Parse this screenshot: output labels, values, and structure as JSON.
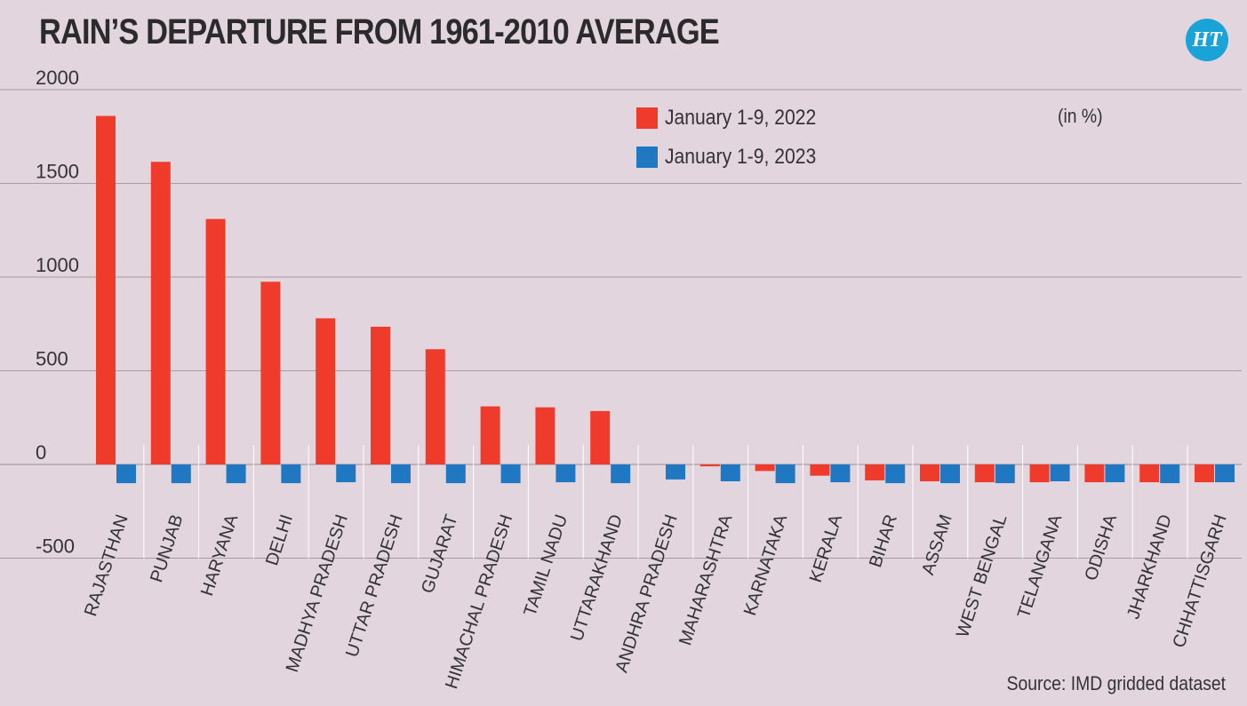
{
  "title": "RAIN’S DEPARTURE FROM 1961-2010 AVERAGE",
  "logo_text": "HT",
  "unit_note": "(in %)",
  "source": "Source: IMD gridded dataset",
  "colors": {
    "series_2022": "#ef3b2c",
    "series_2023": "#1f78c1",
    "background": "#e3d5de"
  },
  "chart_data": {
    "type": "bar",
    "title": "RAIN’S DEPARTURE FROM 1961-2010 AVERAGE",
    "xlabel": "",
    "ylabel": "",
    "ylim": [
      -500,
      2000
    ],
    "yticks": [
      2000,
      1500,
      1000,
      500,
      0,
      -500
    ],
    "grid": true,
    "legend_position": "top-center",
    "categories": [
      "RAJASTHAN",
      "PUNJAB",
      "HARYANA",
      "DELHI",
      "MADHYA PRADESH",
      "UTTAR PRADESH",
      "GUJARAT",
      "HIMACHAL PRADESH",
      "TAMIL NADU",
      "UTTARAKHAND",
      "ANDHRA PRADESH",
      "MAHARASHTRA",
      "KARNATAKA",
      "KERALA",
      "BIHAR",
      "ASSAM",
      "WEST BENGAL",
      "TELANGANA",
      "ODISHA",
      "JHARKHAND",
      "CHHATTISGARH"
    ],
    "series": [
      {
        "name": "January 1-9, 2022",
        "color": "#ef3b2c",
        "values": [
          1860,
          1615,
          1310,
          975,
          780,
          735,
          615,
          310,
          305,
          285,
          0,
          -10,
          -35,
          -60,
          -85,
          -90,
          -95,
          -95,
          -95,
          -95,
          -95
        ]
      },
      {
        "name": "January 1-9, 2023",
        "color": "#1f78c1",
        "values": [
          -100,
          -100,
          -100,
          -100,
          -95,
          -100,
          -100,
          -100,
          -95,
          -100,
          -80,
          -90,
          -100,
          -95,
          -100,
          -100,
          -100,
          -90,
          -95,
          -100,
          -95
        ]
      }
    ]
  }
}
